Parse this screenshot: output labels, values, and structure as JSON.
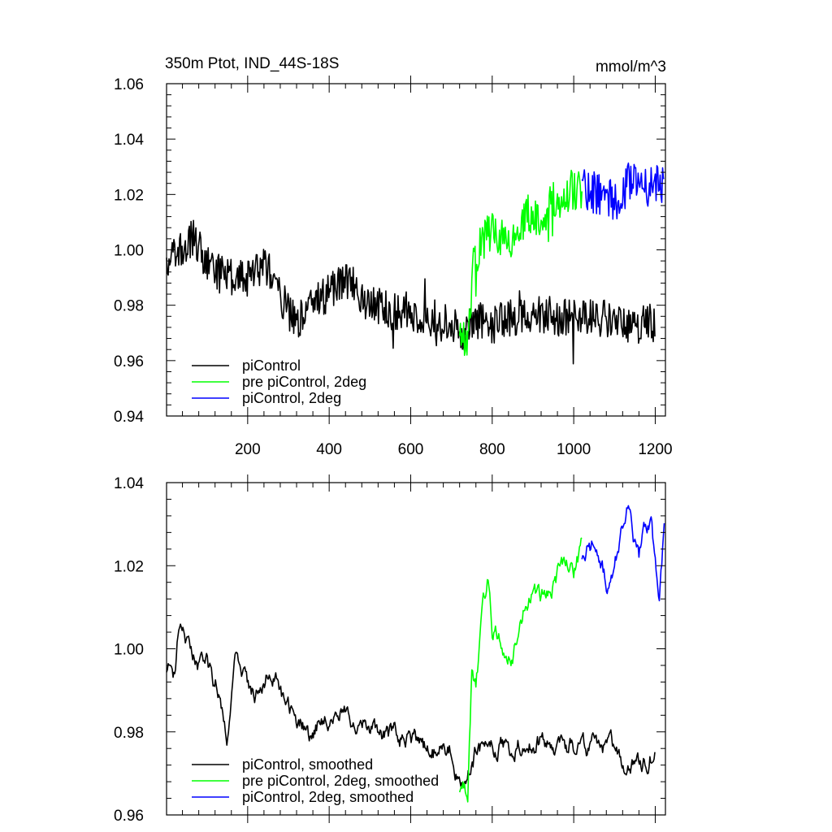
{
  "chart_data": [
    {
      "type": "line",
      "title_left": "350m Ptot, IND_44S-18S",
      "title_right": "mmol/m^3",
      "xlabel": "",
      "ylabel": "",
      "xlim": [
        1,
        1225
      ],
      "ylim": [
        0.94,
        1.06
      ],
      "xticks": [
        200,
        400,
        600,
        800,
        1000,
        1200
      ],
      "yticks": [
        "0.94",
        "0.96",
        "0.98",
        "1.00",
        "1.02",
        "1.04",
        "1.06"
      ],
      "legend_position": "bottom-left",
      "series": [
        {
          "name": "piControl",
          "color": "#000000",
          "x_range": [
            1,
            1200
          ],
          "anchors": [
            [
              1,
              0.995
            ],
            [
              40,
              1.0
            ],
            [
              70,
              1.005
            ],
            [
              100,
              0.995
            ],
            [
              150,
              0.99
            ],
            [
              200,
              0.99
            ],
            [
              240,
              0.995
            ],
            [
              260,
              0.99
            ],
            [
              300,
              0.978
            ],
            [
              330,
              0.975
            ],
            [
              360,
              0.98
            ],
            [
              400,
              0.985
            ],
            [
              440,
              0.99
            ],
            [
              470,
              0.985
            ],
            [
              500,
              0.98
            ],
            [
              550,
              0.978
            ],
            [
              600,
              0.978
            ],
            [
              650,
              0.975
            ],
            [
              700,
              0.975
            ],
            [
              730,
              0.968
            ],
            [
              760,
              0.975
            ],
            [
              800,
              0.975
            ],
            [
              900,
              0.977
            ],
            [
              1000,
              0.975
            ],
            [
              1100,
              0.975
            ],
            [
              1150,
              0.972
            ],
            [
              1200,
              0.974
            ]
          ],
          "noise": 0.007
        },
        {
          "name": "pre piControl, 2deg",
          "color": "#00ff00",
          "x_range": [
            720,
            1020
          ],
          "anchors": [
            [
              720,
              0.966
            ],
            [
              740,
              0.965
            ],
            [
              750,
              0.995
            ],
            [
              770,
              1.002
            ],
            [
              800,
              1.008
            ],
            [
              830,
              1.005
            ],
            [
              850,
              1.005
            ],
            [
              880,
              1.012
            ],
            [
              920,
              1.012
            ],
            [
              960,
              1.018
            ],
            [
              1000,
              1.022
            ],
            [
              1020,
              1.022
            ]
          ],
          "noise": 0.008
        },
        {
          "name": "piControl, 2deg",
          "color": "#0000ff",
          "x_range": [
            1020,
            1222
          ],
          "anchors": [
            [
              1020,
              1.022
            ],
            [
              1060,
              1.02
            ],
            [
              1100,
              1.018
            ],
            [
              1140,
              1.025
            ],
            [
              1180,
              1.022
            ],
            [
              1222,
              1.025
            ]
          ],
          "noise": 0.008
        }
      ]
    },
    {
      "type": "line",
      "xlabel": "",
      "ylabel": "",
      "xlim": [
        1,
        1225
      ],
      "ylim": [
        0.96,
        1.04
      ],
      "yticks": [
        "0.96",
        "0.98",
        "1.00",
        "1.02",
        "1.04"
      ],
      "legend_position": "bottom-left",
      "series": [
        {
          "name": "piControl, smoothed",
          "color": "#000000",
          "x_range": [
            1,
            1200
          ],
          "anchors": [
            [
              1,
              0.996
            ],
            [
              20,
              0.993
            ],
            [
              30,
              1.005
            ],
            [
              60,
              0.998
            ],
            [
              100,
              0.995
            ],
            [
              130,
              0.99
            ],
            [
              150,
              0.98
            ],
            [
              170,
              0.998
            ],
            [
              200,
              0.99
            ],
            [
              230,
              0.99
            ],
            [
              250,
              0.995
            ],
            [
              280,
              0.99
            ],
            [
              300,
              0.985
            ],
            [
              350,
              0.98
            ],
            [
              400,
              0.985
            ],
            [
              450,
              0.985
            ],
            [
              500,
              0.98
            ],
            [
              550,
              0.978
            ],
            [
              600,
              0.978
            ],
            [
              650,
              0.975
            ],
            [
              700,
              0.975
            ],
            [
              730,
              0.967
            ],
            [
              760,
              0.975
            ],
            [
              800,
              0.977
            ],
            [
              900,
              0.977
            ],
            [
              1000,
              0.977
            ],
            [
              1100,
              0.975
            ],
            [
              1150,
              0.972
            ],
            [
              1200,
              0.976
            ]
          ],
          "noise": 0.004
        },
        {
          "name": "pre piControl, 2deg, smoothed",
          "color": "#00ff00",
          "x_range": [
            720,
            1020
          ],
          "anchors": [
            [
              720,
              0.967
            ],
            [
              740,
              0.966
            ],
            [
              750,
              0.995
            ],
            [
              760,
              0.992
            ],
            [
              780,
              1.01
            ],
            [
              790,
              1.016
            ],
            [
              800,
              1.005
            ],
            [
              830,
              1.0
            ],
            [
              850,
              1.0
            ],
            [
              870,
              1.01
            ],
            [
              900,
              1.012
            ],
            [
              940,
              1.013
            ],
            [
              980,
              1.022
            ],
            [
              1000,
              1.02
            ],
            [
              1020,
              1.023
            ]
          ],
          "noise": 0.004
        },
        {
          "name": "piControl, 2deg, smoothed",
          "color": "#0000ff",
          "x_range": [
            1020,
            1222
          ],
          "anchors": [
            [
              1020,
              1.023
            ],
            [
              1060,
              1.025
            ],
            [
              1080,
              1.015
            ],
            [
              1100,
              1.022
            ],
            [
              1130,
              1.033
            ],
            [
              1160,
              1.022
            ],
            [
              1190,
              1.032
            ],
            [
              1200,
              1.02
            ],
            [
              1210,
              1.012
            ],
            [
              1222,
              1.027
            ]
          ],
          "noise": 0.004
        }
      ]
    }
  ]
}
